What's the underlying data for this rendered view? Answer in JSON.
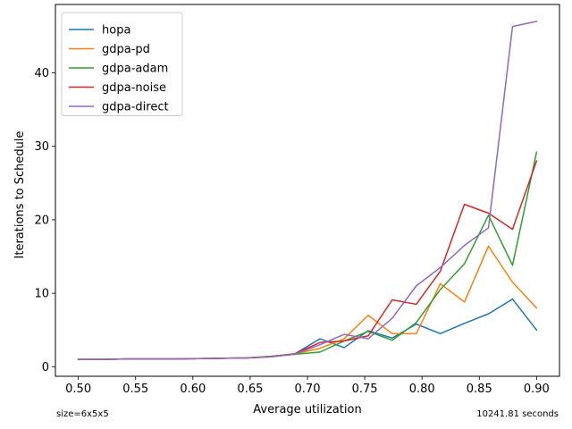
{
  "chart_data": {
    "type": "line",
    "title": "",
    "xlabel": "Average utilization",
    "ylabel": "Iterations to Schedule",
    "xlim": [
      0.48,
      0.92
    ],
    "ylim": [
      -1.3,
      49.3
    ],
    "xticks": [
      0.5,
      0.55,
      0.6,
      0.65,
      0.7,
      0.75,
      0.8,
      0.85,
      0.9
    ],
    "xtick_labels": [
      "0.50",
      "0.55",
      "0.60",
      "0.65",
      "0.70",
      "0.75",
      "0.80",
      "0.85",
      "0.90"
    ],
    "yticks": [
      0,
      10,
      20,
      30,
      40
    ],
    "ytick_labels": [
      "0",
      "10",
      "20",
      "30",
      "40"
    ],
    "grid": false,
    "legend": "top-left",
    "x": [
      0.5,
      0.521,
      0.542,
      0.563,
      0.584,
      0.605,
      0.626,
      0.647,
      0.668,
      0.689,
      0.711,
      0.732,
      0.753,
      0.774,
      0.795,
      0.816,
      0.837,
      0.858,
      0.879,
      0.9
    ],
    "series": [
      {
        "name": "hopa",
        "color": "#1f77b4",
        "values": [
          1.0,
          1.0,
          1.05,
          1.05,
          1.05,
          1.1,
          1.15,
          1.2,
          1.4,
          1.75,
          3.8,
          2.6,
          4.9,
          3.9,
          5.8,
          4.5,
          5.9,
          7.2,
          9.2,
          5.0
        ]
      },
      {
        "name": "gdpa-pd",
        "color": "#ff7f0e",
        "values": [
          1.0,
          1.0,
          1.05,
          1.05,
          1.05,
          1.1,
          1.15,
          1.2,
          1.4,
          1.75,
          2.5,
          3.8,
          7.0,
          4.5,
          4.5,
          11.3,
          8.8,
          16.4,
          11.5,
          8.0
        ]
      },
      {
        "name": "gdpa-adam",
        "color": "#2ca02c",
        "values": [
          1.0,
          1.0,
          1.05,
          1.05,
          1.05,
          1.1,
          1.15,
          1.2,
          1.4,
          1.7,
          2.0,
          3.5,
          4.8,
          3.6,
          6.0,
          10.5,
          14.0,
          20.6,
          13.8,
          29.2
        ]
      },
      {
        "name": "gdpa-noise",
        "color": "#d62728",
        "values": [
          1.0,
          1.0,
          1.05,
          1.05,
          1.05,
          1.1,
          1.15,
          1.2,
          1.35,
          1.75,
          3.3,
          3.5,
          4.2,
          9.1,
          8.5,
          13.0,
          22.1,
          20.9,
          18.7,
          28.0
        ]
      },
      {
        "name": "gdpa-direct",
        "color": "#9467bd",
        "values": [
          1.0,
          1.0,
          1.05,
          1.05,
          1.05,
          1.1,
          1.15,
          1.2,
          1.35,
          1.7,
          3.0,
          4.4,
          3.8,
          6.6,
          11.0,
          13.5,
          16.5,
          18.9,
          46.3,
          47.0
        ]
      }
    ]
  },
  "footer": {
    "left": "size=6x5x5",
    "right": "10241.81 seconds"
  }
}
